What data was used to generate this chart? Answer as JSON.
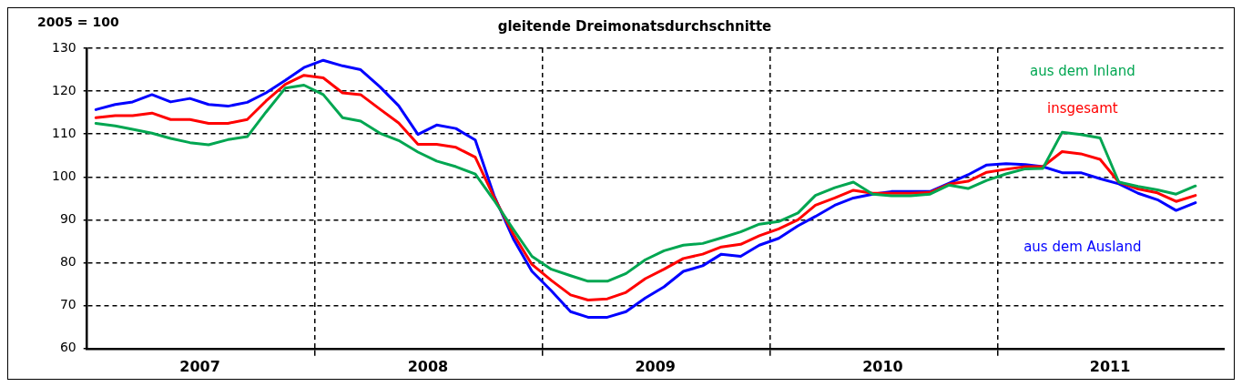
{
  "chart_data": {
    "type": "line",
    "title": "gleitende Dreimonatsdurchschnitte",
    "ylabel": "2005 = 100",
    "x": [
      "2007-01-15",
      "2007-02-15",
      "2007-03-15",
      "2007-04-15",
      "2007-05-15",
      "2007-06-15",
      "2007-07-15",
      "2007-08-15",
      "2007-09-15",
      "2007-10-15",
      "2007-11-15",
      "2007-12-15",
      "2008-01-15",
      "2008-02-15",
      "2008-03-15",
      "2008-04-15",
      "2008-05-15",
      "2008-06-15",
      "2008-07-15",
      "2008-08-15",
      "2008-09-15",
      "2008-10-15",
      "2008-11-15",
      "2008-12-15",
      "2009-01-15",
      "2009-02-15",
      "2009-03-15",
      "2009-04-15",
      "2009-05-15",
      "2009-06-15",
      "2009-07-15",
      "2009-08-15",
      "2009-09-15",
      "2009-10-15",
      "2009-11-15",
      "2009-12-15",
      "2010-01-15",
      "2010-02-15",
      "2010-03-15",
      "2010-04-15",
      "2010-05-15",
      "2010-06-15",
      "2010-07-15",
      "2010-08-15",
      "2010-09-15",
      "2010-10-15",
      "2010-11-15",
      "2010-12-15",
      "2011-01-15",
      "2011-02-15",
      "2011-03-15",
      "2011-04-15",
      "2011-05-15",
      "2011-06-15",
      "2011-07-15",
      "2011-08-15",
      "2011-09-15",
      "2011-10-15",
      "2011-11-15"
    ],
    "series": [
      {
        "name": "aus dem Inland",
        "color": "#00a651",
        "values": [
          112.5,
          111.9,
          111.1,
          110.2,
          109.0,
          108.0,
          107.5,
          108.7,
          109.4,
          115.1,
          120.7,
          121.4,
          119.2,
          113.8,
          113.0,
          110.2,
          108.5,
          105.8,
          103.7,
          102.4,
          100.7,
          94.6,
          87.8,
          81.5,
          78.5,
          77.0,
          75.7,
          75.7,
          77.5,
          80.7,
          82.8,
          84.1,
          84.5,
          85.8,
          87.2,
          89.0,
          89.6,
          91.6,
          95.7,
          97.5,
          98.8,
          96.0,
          95.6,
          95.6,
          96.0,
          98.1,
          97.3,
          99.2,
          100.7,
          101.9,
          102.0,
          110.4,
          109.9,
          109.1,
          98.8,
          97.8,
          97.0,
          96.0,
          97.9
        ]
      },
      {
        "name": "insgesamt",
        "color": "#ff0000",
        "values": [
          113.8,
          114.3,
          114.3,
          114.9,
          113.4,
          113.4,
          112.5,
          112.5,
          113.4,
          117.7,
          121.6,
          123.7,
          123.1,
          119.6,
          119.2,
          115.8,
          112.6,
          107.6,
          107.6,
          106.9,
          104.6,
          95.3,
          86.7,
          79.6,
          75.9,
          72.5,
          71.3,
          71.6,
          73.1,
          76.3,
          78.5,
          81.0,
          82.0,
          83.7,
          84.3,
          86.3,
          87.9,
          90.0,
          93.4,
          95.1,
          96.9,
          96.2,
          96.2,
          96.2,
          96.4,
          98.3,
          99.0,
          101.1,
          101.8,
          102.4,
          102.4,
          105.9,
          105.4,
          104.1,
          98.8,
          97.2,
          96.3,
          94.3,
          95.7
        ]
      },
      {
        "name": "aus dem Ausland",
        "color": "#0000ff",
        "values": [
          115.7,
          116.9,
          117.5,
          119.2,
          117.5,
          118.3,
          116.9,
          116.5,
          117.4,
          119.6,
          122.5,
          125.5,
          127.2,
          125.9,
          125.0,
          121.0,
          116.6,
          109.9,
          112.1,
          111.3,
          108.6,
          95.7,
          85.6,
          78.0,
          73.5,
          68.6,
          67.3,
          67.3,
          68.6,
          71.8,
          74.4,
          78.0,
          79.3,
          82.0,
          81.5,
          84.1,
          85.7,
          88.6,
          90.8,
          93.4,
          95.1,
          96.0,
          96.6,
          96.6,
          96.6,
          98.5,
          100.5,
          102.8,
          103.1,
          102.9,
          102.4,
          101.0,
          101.0,
          99.6,
          98.4,
          96.2,
          94.7,
          92.2,
          94.0
        ]
      }
    ],
    "xlim": [
      "2007-01-01",
      "2012-01-01"
    ],
    "xticks": [
      {
        "value": "2007-07-01",
        "label": "2007"
      },
      {
        "value": "2008-01-01",
        "label": null
      },
      {
        "value": "2008-07-01",
        "label": "2008"
      },
      {
        "value": "2009-01-01",
        "label": null
      },
      {
        "value": "2009-07-01",
        "label": "2009"
      },
      {
        "value": "2010-01-01",
        "label": null
      },
      {
        "value": "2010-07-01",
        "label": "2010"
      },
      {
        "value": "2011-01-01",
        "label": null
      },
      {
        "value": "2011-07-01",
        "label": "2011"
      }
    ],
    "ylim": [
      60,
      130
    ],
    "yticks": [
      60,
      70,
      80,
      90,
      100,
      110,
      120,
      130
    ],
    "grid": true,
    "legend": false,
    "marker": "none",
    "line_style": "solid"
  }
}
